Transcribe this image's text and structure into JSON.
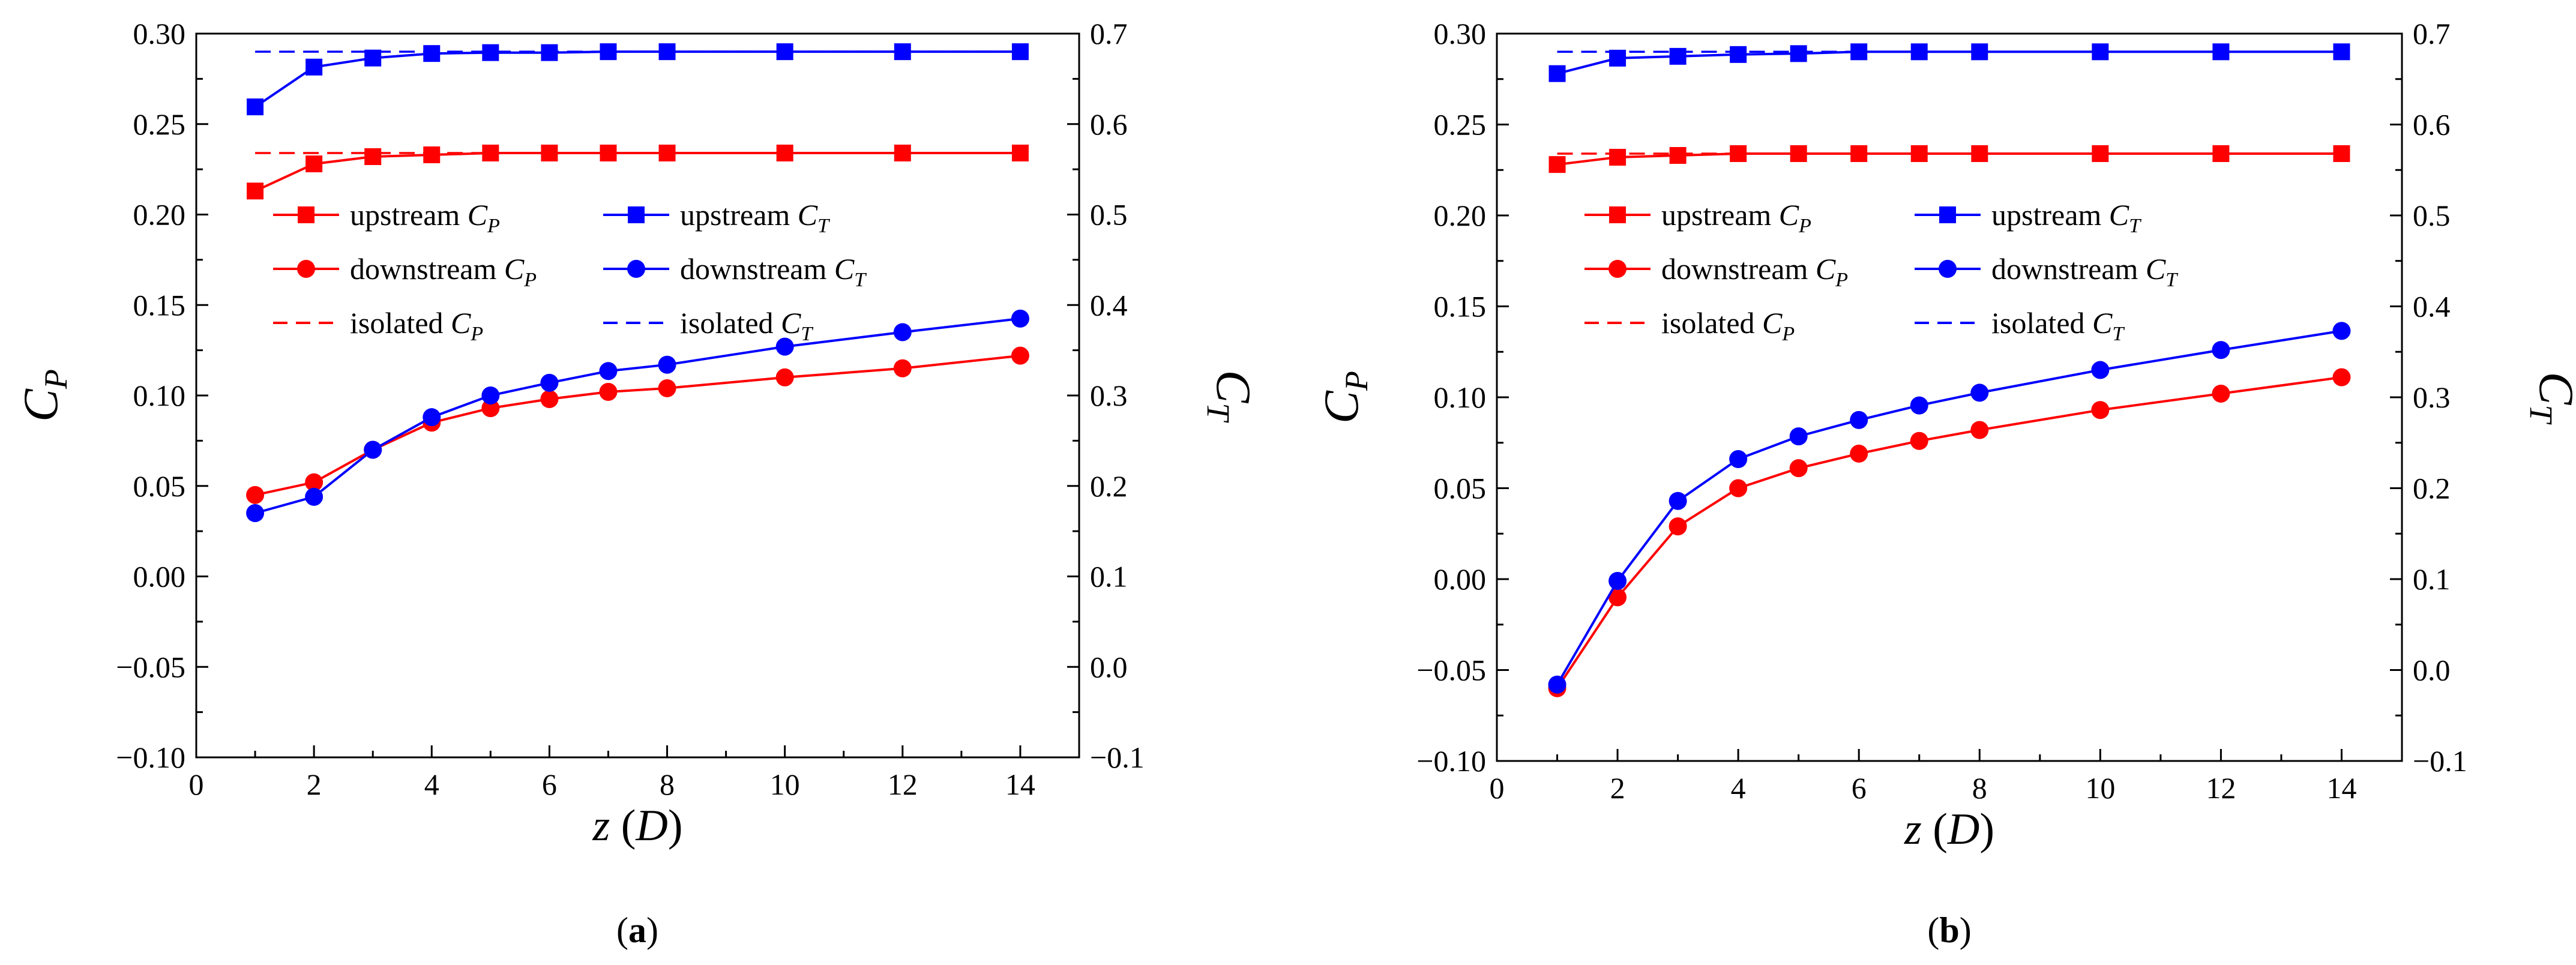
{
  "colors": {
    "cp": "#ff0000",
    "ct": "#0000ff",
    "axis": "#000000",
    "background": "#ffffff"
  },
  "chart_data": [
    {
      "type": "line",
      "panel_label": "a",
      "panel_label_full": "(a)",
      "xlabel_var": "z",
      "xlabel_unit": "D",
      "ylabel_left": {
        "main": "C",
        "sub": "P"
      },
      "ylabel_right": {
        "main": "C",
        "sub": "T"
      },
      "xlim": [
        0,
        15
      ],
      "ylim_left": [
        -0.1,
        0.3
      ],
      "ylim_right": [
        -0.1,
        0.7
      ],
      "xticks": [
        0,
        2,
        4,
        6,
        8,
        10,
        12,
        14
      ],
      "xtick_labels": [
        "0",
        "2",
        "4",
        "6",
        "8",
        "10",
        "12",
        "14"
      ],
      "yticks_left": [
        -0.1,
        -0.05,
        0.0,
        0.05,
        0.1,
        0.15,
        0.2,
        0.25,
        0.3
      ],
      "ytick_labels_left": [
        "−0.10",
        "−0.05",
        "0.00",
        "0.05",
        "0.10",
        "0.15",
        "0.20",
        "0.25",
        "0.30"
      ],
      "yticks_right": [
        -0.1,
        0.0,
        0.1,
        0.2,
        0.3,
        0.4,
        0.5,
        0.6,
        0.7
      ],
      "ytick_labels_right": [
        "−0.1",
        "0.0",
        "0.1",
        "0.2",
        "0.3",
        "0.4",
        "0.5",
        "0.6",
        "0.7"
      ],
      "x": [
        1,
        2,
        3,
        4,
        5,
        6,
        7,
        8,
        10,
        12,
        14
      ],
      "series": [
        {
          "key": "up_cp",
          "name_main": "upstream ",
          "name_sub": "P",
          "axis": "left",
          "color": "#ff0000",
          "marker": "square",
          "dashed": false,
          "values": [
            0.213,
            0.228,
            0.232,
            0.233,
            0.234,
            0.234,
            0.234,
            0.234,
            0.234,
            0.234,
            0.234
          ]
        },
        {
          "key": "up_ct",
          "name_main": "upstream ",
          "name_sub": "T",
          "axis": "right",
          "color": "#0000ff",
          "marker": "square",
          "dashed": false,
          "values": [
            0.619,
            0.663,
            0.673,
            0.678,
            0.679,
            0.679,
            0.68,
            0.68,
            0.68,
            0.68,
            0.68
          ]
        },
        {
          "key": "down_cp",
          "name_main": "downstream ",
          "name_sub": "P",
          "axis": "left",
          "color": "#ff0000",
          "marker": "circle",
          "dashed": false,
          "values": [
            0.045,
            0.052,
            0.07,
            0.085,
            0.093,
            0.098,
            0.102,
            0.104,
            0.11,
            0.115,
            0.122
          ]
        },
        {
          "key": "down_ct",
          "name_main": "downstream ",
          "name_sub": "T",
          "axis": "right",
          "color": "#0000ff",
          "marker": "circle",
          "dashed": false,
          "values": [
            0.17,
            0.188,
            0.24,
            0.276,
            0.3,
            0.314,
            0.327,
            0.334,
            0.354,
            0.37,
            0.385
          ]
        },
        {
          "key": "iso_cp",
          "name_main": "isolated ",
          "name_sub": "P",
          "axis": "left",
          "color": "#ff0000",
          "marker": "none",
          "dashed": true,
          "constant": 0.234
        },
        {
          "key": "iso_ct",
          "name_main": "isolated ",
          "name_sub": "T",
          "axis": "right",
          "color": "#0000ff",
          "marker": "none",
          "dashed": true,
          "constant": 0.68
        }
      ]
    },
    {
      "type": "line",
      "panel_label": "b",
      "panel_label_full": "(b)",
      "xlabel_var": "z",
      "xlabel_unit": "D",
      "ylabel_left": {
        "main": "C",
        "sub": "P"
      },
      "ylabel_right": {
        "main": "C",
        "sub": "T"
      },
      "xlim": [
        0,
        15
      ],
      "ylim_left": [
        -0.1,
        0.3
      ],
      "ylim_right": [
        -0.1,
        0.7
      ],
      "xticks": [
        0,
        2,
        4,
        6,
        8,
        10,
        12,
        14
      ],
      "xtick_labels": [
        "0",
        "2",
        "4",
        "6",
        "8",
        "10",
        "12",
        "14"
      ],
      "yticks_left": [
        -0.1,
        -0.05,
        0.0,
        0.05,
        0.1,
        0.15,
        0.2,
        0.25,
        0.3
      ],
      "ytick_labels_left": [
        "−0.10",
        "−0.05",
        "0.00",
        "0.05",
        "0.10",
        "0.15",
        "0.20",
        "0.25",
        "0.30"
      ],
      "yticks_right": [
        -0.1,
        0.0,
        0.1,
        0.2,
        0.3,
        0.4,
        0.5,
        0.6,
        0.7
      ],
      "ytick_labels_right": [
        "−0.1",
        "0.0",
        "0.1",
        "0.2",
        "0.3",
        "0.4",
        "0.5",
        "0.6",
        "0.7"
      ],
      "x": [
        1,
        2,
        3,
        4,
        5,
        6,
        7,
        8,
        10,
        12,
        14
      ],
      "series": [
        {
          "key": "up_cp",
          "name_main": "upstream ",
          "name_sub": "P",
          "axis": "left",
          "color": "#ff0000",
          "marker": "square",
          "dashed": false,
          "values": [
            0.228,
            0.232,
            0.233,
            0.234,
            0.234,
            0.234,
            0.234,
            0.234,
            0.234,
            0.234,
            0.234
          ]
        },
        {
          "key": "up_ct",
          "name_main": "upstream ",
          "name_sub": "T",
          "axis": "right",
          "color": "#0000ff",
          "marker": "square",
          "dashed": false,
          "values": [
            0.656,
            0.673,
            0.675,
            0.677,
            0.678,
            0.68,
            0.68,
            0.68,
            0.68,
            0.68,
            0.68
          ]
        },
        {
          "key": "down_cp",
          "name_main": "downstream ",
          "name_sub": "P",
          "axis": "left",
          "color": "#ff0000",
          "marker": "circle",
          "dashed": false,
          "values": [
            -0.06,
            -0.01,
            0.029,
            0.05,
            0.061,
            0.069,
            0.076,
            0.082,
            0.093,
            0.102,
            0.111
          ]
        },
        {
          "key": "down_ct",
          "name_main": "downstream ",
          "name_sub": "T",
          "axis": "right",
          "color": "#0000ff",
          "marker": "circle",
          "dashed": false,
          "values": [
            -0.016,
            0.098,
            0.186,
            0.232,
            0.257,
            0.275,
            0.291,
            0.305,
            0.33,
            0.352,
            0.373
          ]
        },
        {
          "key": "iso_cp",
          "name_main": "isolated ",
          "name_sub": "P",
          "axis": "left",
          "color": "#ff0000",
          "marker": "none",
          "dashed": true,
          "constant": 0.234
        },
        {
          "key": "iso_ct",
          "name_main": "isolated ",
          "name_sub": "T",
          "axis": "right",
          "color": "#0000ff",
          "marker": "none",
          "dashed": true,
          "constant": 0.68
        }
      ]
    }
  ]
}
